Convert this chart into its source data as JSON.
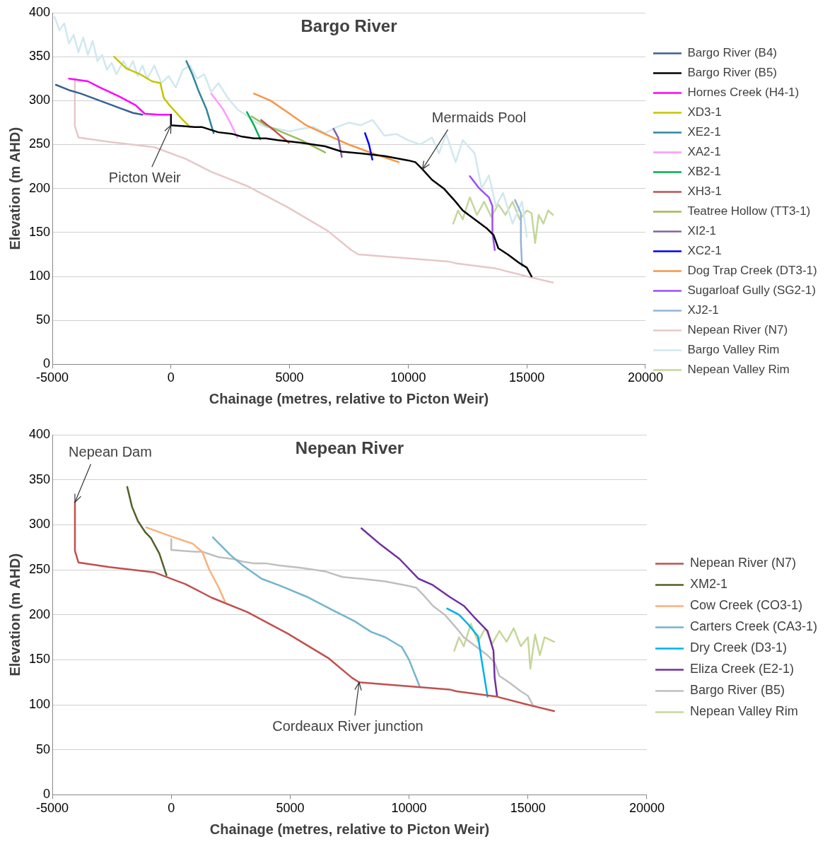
{
  "chart_data": [
    {
      "type": "line",
      "title": "Bargo River",
      "xlabel": "Chainage (metres, relative to Picton Weir)",
      "ylabel": "Elevation (m AHD)",
      "xlim": [
        -5000,
        20000
      ],
      "xticks": [
        -5000,
        0,
        5000,
        10000,
        15000,
        20000
      ],
      "ylim": [
        0,
        400
      ],
      "yticks": [
        0,
        50,
        100,
        150,
        200,
        250,
        300,
        350,
        400
      ],
      "grid": "y",
      "legend": "right",
      "annotations": [
        {
          "text": "Picton Weir",
          "x": 0,
          "y": 272
        },
        {
          "text": "Mermaids Pool",
          "x": 10600,
          "y": 222
        }
      ],
      "series": [
        {
          "name": "Bargo River (B4)",
          "color": "#376092",
          "x": [
            -4850,
            -4300,
            -3800,
            -3000,
            -2200,
            -1600,
            -1200
          ],
          "values": [
            318,
            312,
            308,
            300,
            292,
            286,
            284
          ]
        },
        {
          "name": "Bargo River (B5)",
          "color": "#000000",
          "x": [
            0,
            0,
            1000,
            1300,
            2000,
            2600,
            3000,
            3500,
            4000,
            4500,
            5500,
            6500,
            7200,
            8000,
            9000,
            10000,
            10300,
            10600,
            11000,
            11500,
            12000,
            12300,
            12800,
            13300,
            13600,
            13800,
            14200,
            14700,
            15000,
            15200
          ],
          "values": [
            284,
            272,
            270,
            270,
            264,
            262,
            259,
            257,
            257,
            255,
            252,
            248,
            242,
            240,
            237,
            232,
            230,
            222,
            210,
            200,
            185,
            175,
            165,
            155,
            147,
            132,
            125,
            115,
            110,
            100
          ]
        },
        {
          "name": "Hornes Creek (H4-1)",
          "color": "#ff00ff",
          "x": [
            -4300,
            -3500,
            -3000,
            -2200,
            -1500,
            -1100,
            -500,
            0
          ],
          "values": [
            325,
            322,
            315,
            305,
            295,
            285,
            284,
            284
          ]
        },
        {
          "name": "XD3-1",
          "color": "#c8c400",
          "x": [
            -2400,
            -1900,
            -1300,
            -800,
            -450,
            -300,
            -100,
            200,
            500,
            800
          ],
          "values": [
            350,
            337,
            330,
            322,
            320,
            303,
            296,
            287,
            278,
            270
          ]
        },
        {
          "name": "XE2-1",
          "color": "#31859c",
          "x": [
            650,
            900,
            1150,
            1500,
            1800
          ],
          "values": [
            345,
            330,
            312,
            290,
            263
          ]
        },
        {
          "name": "XA2-1",
          "color": "#ff99ff",
          "x": [
            1700,
            2200,
            2500,
            2800
          ],
          "values": [
            308,
            290,
            275,
            258
          ]
        },
        {
          "name": "XB2-1",
          "color": "#00b050",
          "x": [
            3200,
            3500,
            3770
          ],
          "values": [
            287,
            272,
            256
          ]
        },
        {
          "name": "XH3-1",
          "color": "#c0504d",
          "x": [
            3800,
            4400,
            4970
          ],
          "values": [
            278,
            265,
            252
          ]
        },
        {
          "name": "Teatree Hollow (TT3-1)",
          "color": "#9bbb59",
          "x": [
            3400,
            4000,
            4700,
            5500,
            6500
          ],
          "values": [
            282,
            272,
            264,
            255,
            241
          ]
        },
        {
          "name": "XI2-1",
          "color": "#8064a2",
          "x": [
            6850,
            7050,
            7200
          ],
          "values": [
            268,
            258,
            236
          ]
        },
        {
          "name": "XC2-1",
          "color": "#0000ff",
          "x": [
            8180,
            8350,
            8490
          ],
          "values": [
            263,
            250,
            233
          ]
        },
        {
          "name": "Dog Trap Creek (DT3-1)",
          "color": "#f79646",
          "x": [
            3500,
            4200,
            4900,
            5700,
            6500,
            7500,
            8500,
            9600
          ],
          "values": [
            308,
            300,
            287,
            272,
            262,
            250,
            240,
            230
          ]
        },
        {
          "name": "Sugarloaf Gully (SG2-1)",
          "color": "#9b4dff",
          "x": [
            12600,
            13000,
            13400,
            13550,
            13550,
            13650
          ],
          "values": [
            214,
            200,
            190,
            180,
            150,
            130
          ]
        },
        {
          "name": "XJ2-1",
          "color": "#95b3d7",
          "x": [
            14500,
            14750,
            14750,
            14800
          ],
          "values": [
            187,
            172,
            140,
            112
          ]
        },
        {
          "name": "Nepean River (N7)",
          "color": "#e6c8c6",
          "x": [
            -4050,
            -4050,
            -3900,
            -2600,
            -700,
            600,
            1700,
            3200,
            4900,
            6600,
            7600,
            7900,
            11700,
            12000,
            13700,
            15000,
            16100
          ],
          "values": [
            325,
            271,
            258,
            253,
            247,
            234,
            219,
            203,
            179,
            152,
            130,
            125,
            117,
            115,
            109,
            100,
            93
          ]
        },
        {
          "name": "Bargo Valley Rim",
          "color": "#d0e8ef",
          "x": [
            -4900,
            -4700,
            -4500,
            -4300,
            -4100,
            -3900,
            -3700,
            -3500,
            -3300,
            -3100,
            -2900,
            -2700,
            -2500,
            -2300,
            -2000,
            -1800,
            -1600,
            -1400,
            -1200,
            -1000,
            -700,
            -400,
            -100,
            200,
            500,
            800,
            1100,
            1400,
            1700,
            2000,
            2400,
            2800,
            3200,
            3600,
            4000,
            4500,
            5000,
            5500,
            6000,
            6500,
            7000,
            7500,
            8000,
            8500,
            9000,
            9500,
            10000,
            10500,
            11000,
            11300,
            11600,
            12000,
            12300,
            12800,
            13100,
            13400,
            13700,
            14000,
            14400,
            14800,
            15000
          ],
          "values": [
            395,
            380,
            388,
            365,
            375,
            355,
            372,
            352,
            368,
            345,
            352,
            335,
            343,
            330,
            345,
            335,
            345,
            328,
            340,
            325,
            340,
            320,
            328,
            315,
            335,
            340,
            325,
            330,
            310,
            320,
            303,
            290,
            283,
            275,
            270,
            268,
            265,
            268,
            270,
            263,
            270,
            275,
            272,
            278,
            260,
            262,
            255,
            250,
            258,
            240,
            262,
            230,
            255,
            240,
            200,
            215,
            180,
            195,
            160,
            185,
            145
          ]
        },
        {
          "name": "Nepean Valley Rim",
          "color": "#c4d79b",
          "x": [
            11900,
            12100,
            12300,
            12600,
            12900,
            13200,
            13500,
            13800,
            14100,
            14400,
            14700,
            15000,
            15200,
            15350,
            15500,
            15700,
            15900,
            16100
          ],
          "values": [
            160,
            175,
            165,
            190,
            170,
            185,
            168,
            182,
            170,
            185,
            165,
            175,
            172,
            138,
            170,
            160,
            175,
            170
          ]
        }
      ]
    },
    {
      "type": "line",
      "title": "Nepean River",
      "xlabel": "Chainage (metres, relative to Picton Weir)",
      "ylabel": "Elevation (m AHD)",
      "xlim": [
        -5000,
        20000
      ],
      "xticks": [
        -5000,
        0,
        5000,
        10000,
        15000,
        20000
      ],
      "ylim": [
        0,
        400
      ],
      "yticks": [
        0,
        50,
        100,
        150,
        200,
        250,
        300,
        350,
        400
      ],
      "grid": "y",
      "legend": "right",
      "annotations": [
        {
          "text": "Nepean Dam",
          "x": -4050,
          "y": 325
        },
        {
          "text": "Cordeaux River junction",
          "x": 7900,
          "y": 125
        }
      ],
      "series": [
        {
          "name": "Nepean River (N7)",
          "color": "#c0504d",
          "x": [
            -4050,
            -4050,
            -3900,
            -2600,
            -700,
            600,
            1700,
            3200,
            4900,
            6600,
            7600,
            7900,
            11700,
            12000,
            13700,
            15000,
            16100
          ],
          "values": [
            325,
            271,
            258,
            253,
            247,
            234,
            219,
            203,
            179,
            152,
            130,
            125,
            117,
            115,
            109,
            100,
            93
          ]
        },
        {
          "name": "XM2-1",
          "color": "#4f6228",
          "x": [
            -1850,
            -1650,
            -1400,
            -1100,
            -850,
            -500,
            -200
          ],
          "values": [
            342,
            320,
            304,
            292,
            285,
            268,
            244
          ]
        },
        {
          "name": "Cow Creek (CO3-1)",
          "color": "#fab07a",
          "x": [
            -1050,
            0,
            900,
            1300,
            1600,
            2000,
            2250
          ],
          "values": [
            297,
            287,
            279,
            270,
            250,
            230,
            215
          ]
        },
        {
          "name": "Carters Creek (CA3-1)",
          "color": "#72b5cc",
          "x": [
            1750,
            2500,
            3000,
            3800,
            4600,
            5700,
            6800,
            7700,
            8400,
            9000,
            9700,
            10000,
            10450
          ],
          "values": [
            286,
            266,
            255,
            240,
            232,
            220,
            205,
            193,
            181,
            175,
            164,
            150,
            120
          ]
        },
        {
          "name": "Dry Creek (D3-1)",
          "color": "#00b0f0",
          "x": [
            11600,
            12100,
            12500,
            12900,
            13050,
            13300
          ],
          "values": [
            207,
            200,
            189,
            176,
            150,
            109
          ]
        },
        {
          "name": "Eliza Creek (E2-1)",
          "color": "#7030a0",
          "x": [
            8000,
            8800,
            9600,
            10400,
            11000,
            11700,
            12300,
            12750,
            13300,
            13550,
            13600,
            13700
          ],
          "values": [
            296,
            278,
            262,
            240,
            233,
            220,
            210,
            197,
            182,
            160,
            130,
            110
          ]
        },
        {
          "name": "Bargo River (B5)",
          "color": "#bfbfbf",
          "x": [
            0,
            0,
            1000,
            1300,
            2000,
            2600,
            3000,
            3500,
            4000,
            4500,
            5500,
            6500,
            7200,
            8000,
            9000,
            10000,
            10300,
            10600,
            11000,
            11500,
            12000,
            12300,
            12800,
            13300,
            13600,
            13800,
            14200,
            14700,
            15000,
            15200
          ],
          "values": [
            284,
            272,
            270,
            270,
            264,
            262,
            259,
            257,
            257,
            255,
            252,
            248,
            242,
            240,
            237,
            232,
            230,
            222,
            210,
            200,
            185,
            175,
            165,
            155,
            147,
            132,
            125,
            115,
            110,
            100
          ]
        },
        {
          "name": "Nepean Valley Rim",
          "color": "#c4d79b",
          "x": [
            11900,
            12100,
            12300,
            12600,
            12900,
            13200,
            13500,
            13800,
            14100,
            14400,
            14700,
            15000,
            15100,
            15300,
            15500,
            15700,
            16100
          ],
          "values": [
            160,
            175,
            165,
            190,
            170,
            185,
            168,
            182,
            170,
            185,
            165,
            175,
            140,
            178,
            155,
            175,
            170
          ]
        }
      ]
    }
  ]
}
